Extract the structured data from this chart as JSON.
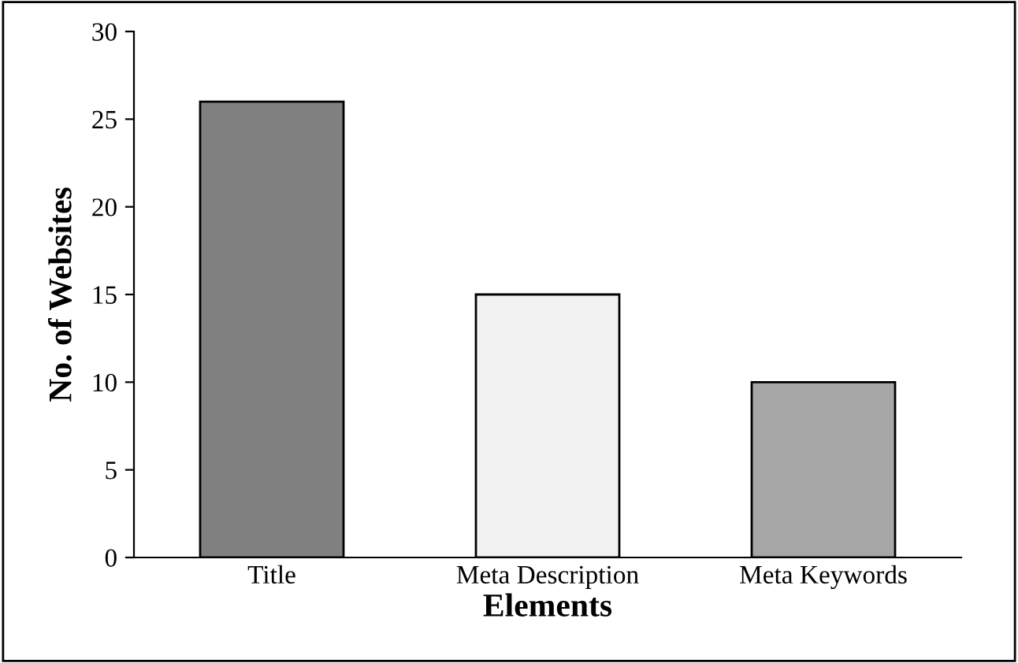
{
  "chart_data": {
    "type": "bar",
    "xlabel": "Elements",
    "ylabel": "No. of Websites",
    "categories": [
      "Title",
      "Meta Description",
      "Meta Keywords"
    ],
    "values": [
      26,
      15,
      10
    ],
    "colors": [
      "#808080",
      "#f2f2f2",
      "#a6a6a6"
    ],
    "ylim": [
      0,
      30
    ],
    "yticks": [
      0,
      5,
      10,
      15,
      20,
      25,
      30
    ],
    "grid": false,
    "legend": false
  }
}
